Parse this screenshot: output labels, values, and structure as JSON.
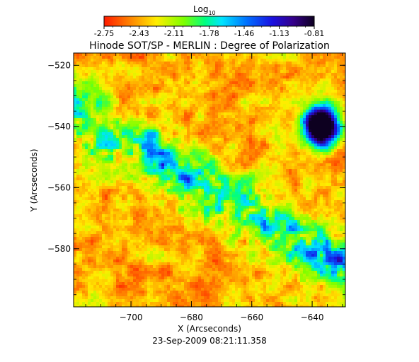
{
  "chart_data": {
    "type": "heatmap",
    "title": "Hinode SOT/SP - MERLIN : Degree of Polarization",
    "colorbar": {
      "label_base": "Log",
      "label_sub": "10",
      "ticks": [
        "-2.75",
        "-2.43",
        "-2.11",
        "-1.78",
        "-1.46",
        "-1.13",
        "-0.81"
      ],
      "range": [
        -2.75,
        -0.81
      ],
      "colormap": "rainbow (red low to black-purple high)"
    },
    "x_axis": {
      "label": "X (Arcseconds)",
      "range": [
        -719,
        -629
      ],
      "ticks": [
        -700,
        -680,
        -660,
        -640
      ],
      "tick_labels": [
        "−700",
        "−680",
        "−660",
        "−640"
      ]
    },
    "y_axis": {
      "label": "Y (Arcseconds)",
      "range": [
        -599,
        -516
      ],
      "ticks": [
        -520,
        -540,
        -560,
        -580
      ],
      "tick_labels": [
        "−520",
        "−540",
        "−560",
        "−580"
      ]
    },
    "timestamp": "23-Sep-2009 08:21:11.358",
    "features": [
      {
        "x": -637,
        "y": -540,
        "value": -0.81,
        "description": "strong polarization spot"
      },
      {
        "x": -686,
        "y": -560,
        "value": -1.9,
        "description": "diagonal enhanced band"
      }
    ]
  }
}
